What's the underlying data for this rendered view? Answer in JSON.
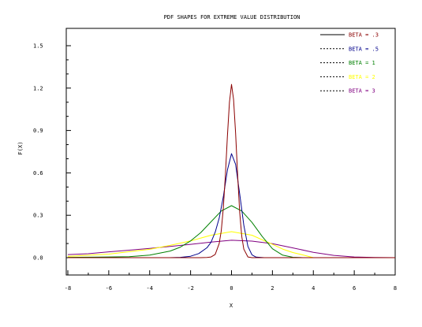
{
  "chart_data": {
    "type": "line",
    "title": "PDF SHAPES FOR EXTREME VALUE DISTRIBUTION",
    "xlabel": "X",
    "ylabel": "F(X)",
    "xlim": [
      -8,
      8
    ],
    "ylim": [
      -0.12,
      1.62
    ],
    "x_ticks": [
      -8,
      -6,
      -4,
      -2,
      0,
      2,
      4,
      6,
      8
    ],
    "x_tick_labels": [
      "-8",
      "-6",
      "-4",
      "-2",
      "0",
      "2",
      "4",
      "6",
      "8"
    ],
    "y_ticks": [
      0.0,
      0.3,
      0.6,
      0.9,
      1.2,
      1.5
    ],
    "y_tick_labels": [
      "0.0",
      "0.3",
      "0.6",
      "0.9",
      "1.2",
      "1.5"
    ],
    "grid": false,
    "legend_position": "top-right",
    "series": [
      {
        "name": "BETA = .3",
        "color": "#8b0000",
        "dash": "solid",
        "x": [
          -8,
          -1.6,
          -1.2,
          -1.0,
          -0.8,
          -0.6,
          -0.5,
          -0.4,
          -0.3,
          -0.2,
          -0.1,
          0.0,
          0.1,
          0.2,
          0.3,
          0.4,
          0.5,
          0.6,
          0.8,
          1.0,
          1.2,
          1.6,
          8
        ],
        "y": [
          0.0,
          0.0,
          0.001,
          0.005,
          0.023,
          0.1,
          0.19,
          0.35,
          0.58,
          0.86,
          1.1,
          1.226,
          1.12,
          0.88,
          0.58,
          0.32,
          0.15,
          0.06,
          0.005,
          0.0,
          0.0,
          0.0,
          0.0
        ]
      },
      {
        "name": "BETA = .5",
        "color": "#00008b",
        "dash": "dotted",
        "x": [
          -8,
          -3.0,
          -2.5,
          -2.0,
          -1.6,
          -1.2,
          -1.0,
          -0.8,
          -0.6,
          -0.4,
          -0.2,
          0.0,
          0.2,
          0.4,
          0.6,
          0.8,
          1.0,
          1.2,
          1.6,
          2.0,
          8
        ],
        "y": [
          0.0,
          0.0,
          0.002,
          0.01,
          0.029,
          0.07,
          0.11,
          0.18,
          0.28,
          0.43,
          0.62,
          0.736,
          0.66,
          0.45,
          0.23,
          0.08,
          0.02,
          0.004,
          0.0,
          0.0,
          0.0
        ]
      },
      {
        "name": "BETA = 1",
        "color": "#008000",
        "dash": "dotted",
        "x": [
          -8,
          -6,
          -5,
          -4,
          -3,
          -2.5,
          -2,
          -1.5,
          -1,
          -0.5,
          0,
          0.5,
          1,
          1.5,
          2,
          2.5,
          3,
          3.5,
          4,
          8
        ],
        "y": [
          0.002,
          0.005,
          0.007,
          0.018,
          0.047,
          0.075,
          0.118,
          0.178,
          0.254,
          0.33,
          0.368,
          0.33,
          0.25,
          0.15,
          0.063,
          0.018,
          0.003,
          0.0,
          0.0,
          0.0
        ]
      },
      {
        "name": "BETA = 2",
        "color": "#ffff00",
        "dash": "dotted",
        "x": [
          -8,
          -6,
          -4,
          -3,
          -2,
          -1,
          0,
          1,
          2,
          2.5,
          3,
          3.5,
          4,
          8
        ],
        "y": [
          0.009,
          0.025,
          0.059,
          0.087,
          0.118,
          0.159,
          0.184,
          0.159,
          0.094,
          0.061,
          0.036,
          0.019,
          0.0,
          0.0
        ]
      },
      {
        "name": "BETA = 3",
        "color": "#800080",
        "dash": "dotted",
        "x": [
          -8,
          -7,
          -6,
          -5,
          -4,
          -3,
          -2,
          -1,
          0,
          1,
          2,
          3,
          4,
          5,
          6,
          7,
          8
        ],
        "y": [
          0.022,
          0.028,
          0.041,
          0.053,
          0.065,
          0.079,
          0.094,
          0.11,
          0.123,
          0.117,
          0.099,
          0.069,
          0.038,
          0.016,
          0.005,
          0.001,
          0.0
        ]
      }
    ]
  }
}
